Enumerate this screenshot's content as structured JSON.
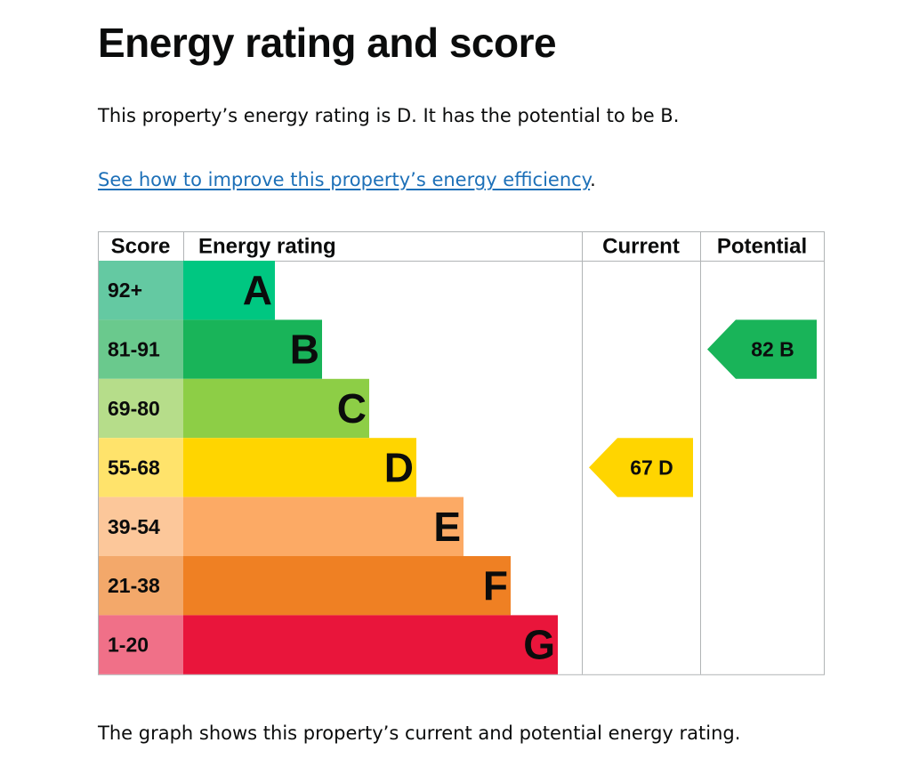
{
  "page": {
    "title": "Energy rating and score",
    "summary": "This property’s energy rating is D. It has the potential to be B.",
    "link_text": "See how to improve this property’s energy efficiency",
    "link_suffix": ".",
    "footer": "The graph shows this property’s current and potential energy rating."
  },
  "chart_data": {
    "type": "bar",
    "headers": {
      "score": "Score",
      "rating": "Energy rating",
      "current": "Current",
      "potential": "Potential"
    },
    "bands": [
      {
        "letter": "A",
        "range": "92+",
        "color": "#00c781",
        "score_bg": "#64c9a2"
      },
      {
        "letter": "B",
        "range": "81-91",
        "color": "#19b459",
        "score_bg": "#6ac98d"
      },
      {
        "letter": "C",
        "range": "69-80",
        "color": "#8dce46",
        "score_bg": "#b6dd8a"
      },
      {
        "letter": "D",
        "range": "55-68",
        "color": "#ffd500",
        "score_bg": "#ffe36b"
      },
      {
        "letter": "E",
        "range": "39-54",
        "color": "#fcaa65",
        "score_bg": "#fcc79a"
      },
      {
        "letter": "F",
        "range": "21-38",
        "color": "#ef8023",
        "score_bg": "#f3a86a"
      },
      {
        "letter": "G",
        "range": "1-20",
        "color": "#e9153b",
        "score_bg": "#f07088"
      }
    ],
    "current": {
      "score": 67,
      "rating": "D",
      "label": "67  D"
    },
    "potential": {
      "score": 82,
      "rating": "B",
      "label": "82  B"
    }
  }
}
